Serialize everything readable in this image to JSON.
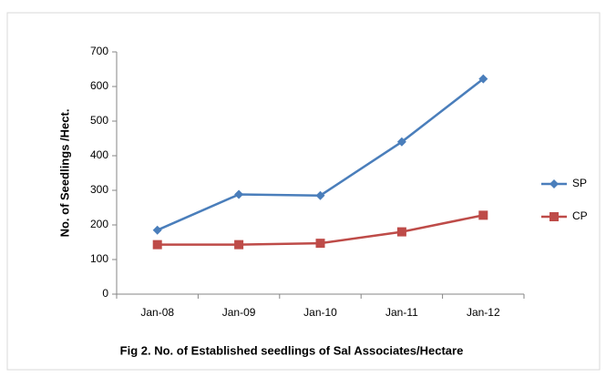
{
  "chart_data": {
    "type": "line",
    "title": "Fig 2. No. of Established seedlings of Sal Associates/Hectare",
    "y_label": "No. of Seedlings /Hect.",
    "categories": [
      "Jan-08",
      "Jan-09",
      "Jan-10",
      "Jan-11",
      "Jan-12"
    ],
    "series": [
      {
        "name": "SP",
        "color": "#4a7ebb",
        "marker": "diamond",
        "values": [
          185,
          288,
          285,
          440,
          622
        ]
      },
      {
        "name": "CP",
        "color": "#be4b48",
        "marker": "square",
        "values": [
          143,
          143,
          147,
          180,
          228
        ]
      }
    ],
    "ylim": [
      0,
      700
    ],
    "yticks": [
      0,
      100,
      200,
      300,
      400,
      500,
      600,
      700
    ],
    "grid": false,
    "legend": "right"
  }
}
